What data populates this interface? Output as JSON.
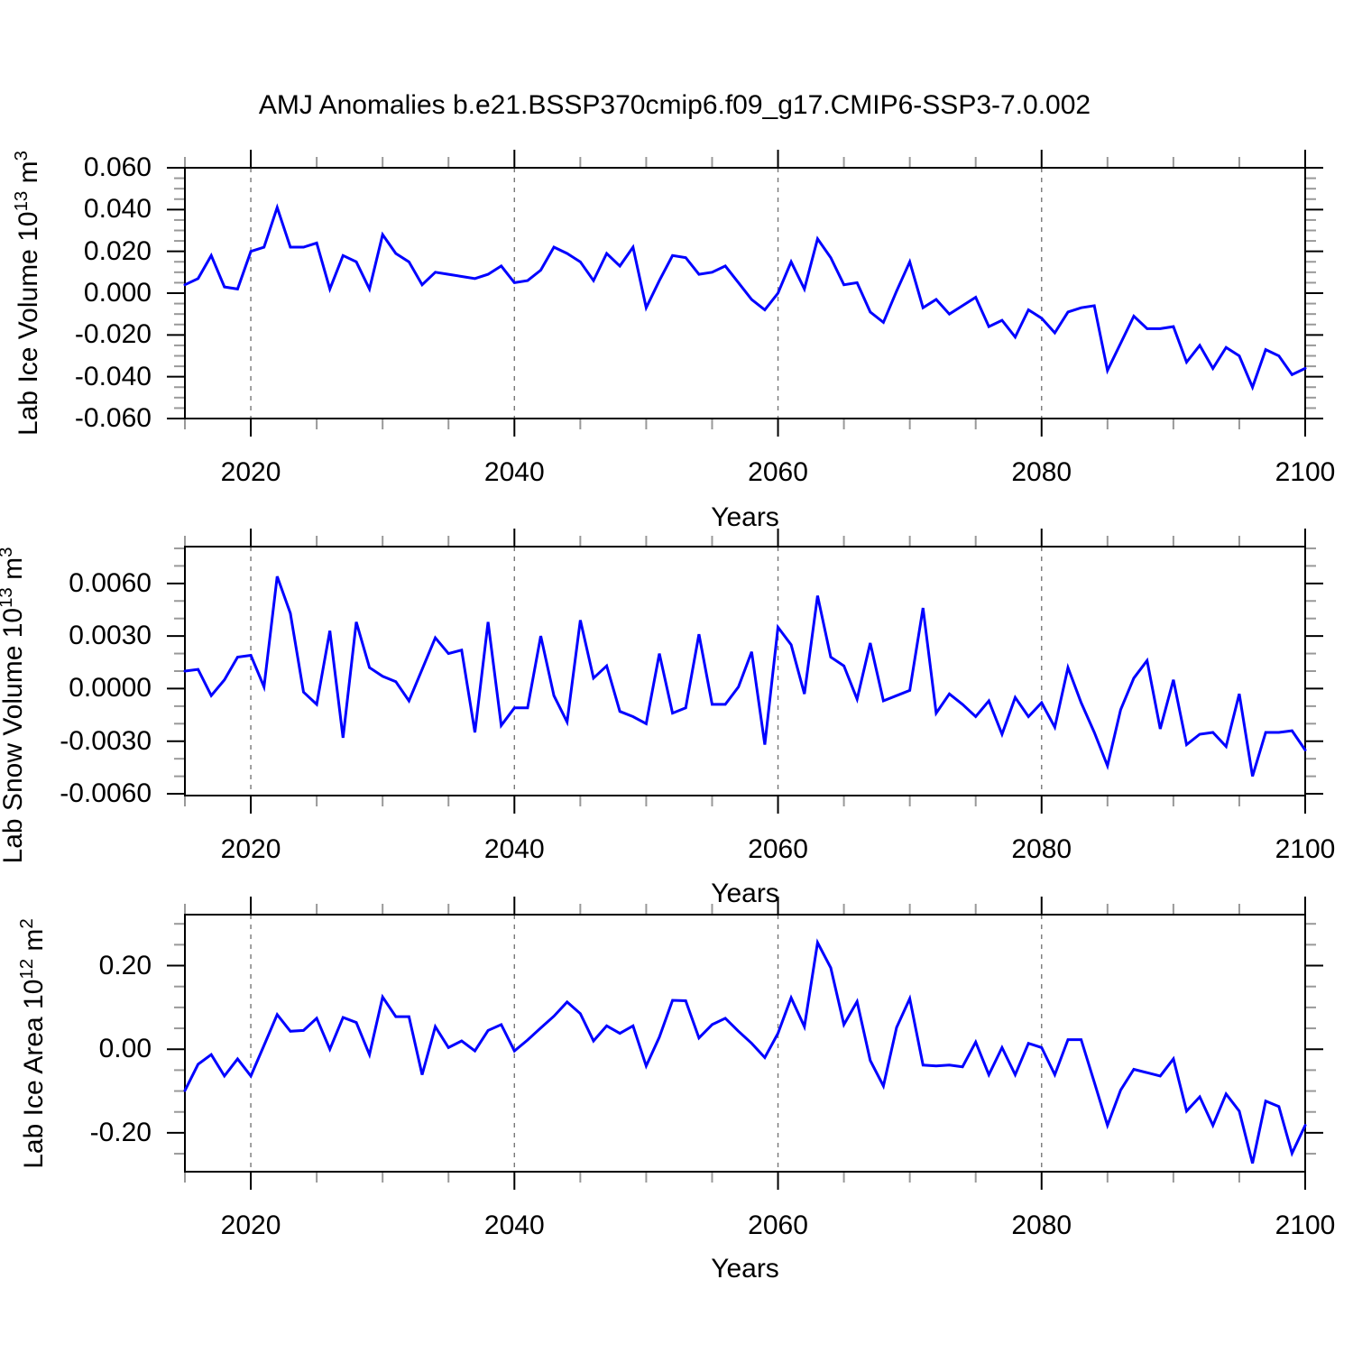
{
  "title": "AMJ Anomalies b.e21.BSSP370cmip6.f09_g17.CMIP6-SSP3-7.0.002",
  "xlabel": "Years",
  "line_color": "#0000ff",
  "axis_color": "#000000",
  "minor_tick_color": "#999999",
  "grid_color": "#777777",
  "x_tick_labels": [
    "2020",
    "2040",
    "2060",
    "2080",
    "2100"
  ],
  "chart_data": [
    {
      "type": "line",
      "name": "lab-ice-volume",
      "ylabel": "Lab Ice Volume 10^13 m^3",
      "ylabel_main": "Lab Ice Volume 10",
      "ylabel_sup": "13",
      "ylabel_unit": " m",
      "ylabel_unit_sup": "3",
      "xlim": [
        2015,
        2100
      ],
      "ylim": [
        -0.06,
        0.06
      ],
      "x_major_ticks": [
        2020,
        2040,
        2060,
        2080,
        2100
      ],
      "x_minor_step": 5,
      "grid_years": [
        2020,
        2040,
        2060,
        2080
      ],
      "y_major_ticks": [
        0.06,
        0.04,
        0.02,
        0.0,
        -0.02,
        -0.04,
        -0.06
      ],
      "y_tick_labels": [
        "0.060",
        "0.040",
        "0.020",
        "0.000",
        "-0.020",
        "-0.040",
        "-0.060"
      ],
      "y_minor_step": 0.005,
      "x_start": 2015,
      "x_step": 1,
      "values": [
        0.004,
        0.007,
        0.018,
        0.003,
        0.002,
        0.02,
        0.022,
        0.041,
        0.022,
        0.022,
        0.024,
        0.002,
        0.018,
        0.015,
        0.002,
        0.028,
        0.019,
        0.015,
        0.004,
        0.01,
        0.009,
        0.008,
        0.007,
        0.009,
        0.013,
        0.005,
        0.006,
        0.011,
        0.022,
        0.019,
        0.015,
        0.006,
        0.019,
        0.013,
        0.022,
        -0.007,
        0.006,
        0.018,
        0.017,
        0.009,
        0.01,
        0.013,
        0.005,
        -0.003,
        -0.008,
        0.0,
        0.015,
        0.002,
        0.026,
        0.017,
        0.004,
        0.005,
        -0.009,
        -0.014,
        0.001,
        0.015,
        -0.007,
        -0.003,
        -0.01,
        -0.006,
        -0.002,
        -0.016,
        -0.013,
        -0.021,
        -0.008,
        -0.012,
        -0.019,
        -0.009,
        -0.007,
        -0.006,
        -0.037,
        -0.024,
        -0.011,
        -0.017,
        -0.017,
        -0.016,
        -0.033,
        -0.025,
        -0.036,
        -0.026,
        -0.03,
        -0.045,
        -0.027,
        -0.03,
        -0.039,
        -0.036
      ]
    },
    {
      "type": "line",
      "name": "lab-snow-volume",
      "ylabel": "Lab Snow Volume 10^13 m^3",
      "ylabel_main": "Lab Snow Volume 10",
      "ylabel_sup": "13",
      "ylabel_unit": " m",
      "ylabel_unit_sup": "3",
      "xlim": [
        2015,
        2100
      ],
      "ylim": [
        -0.0061,
        0.0081
      ],
      "x_major_ticks": [
        2020,
        2040,
        2060,
        2080,
        2100
      ],
      "x_minor_step": 5,
      "grid_years": [
        2020,
        2040,
        2060,
        2080
      ],
      "y_major_ticks": [
        0.006,
        0.003,
        0.0,
        -0.003,
        -0.006
      ],
      "y_tick_labels": [
        "0.0060",
        "0.0030",
        "0.0000",
        "-0.0030",
        "-0.0060"
      ],
      "y_minor_step": 0.001,
      "x_start": 2015,
      "x_step": 1,
      "values": [
        0.001,
        0.0011,
        -0.0004,
        0.0005,
        0.0018,
        0.0019,
        0.0001,
        0.0064,
        0.0043,
        -0.0002,
        -0.0009,
        0.0033,
        -0.0028,
        0.0038,
        0.0012,
        0.0007,
        0.0004,
        -0.0007,
        0.0011,
        0.0029,
        0.002,
        0.0022,
        -0.0025,
        0.0038,
        -0.0021,
        -0.0011,
        -0.0011,
        0.003,
        -0.0004,
        -0.0019,
        0.0039,
        0.0006,
        0.0013,
        -0.0013,
        -0.0016,
        -0.002,
        0.002,
        -0.0014,
        -0.0011,
        0.0031,
        -0.0009,
        -0.0009,
        0.0001,
        0.0021,
        -0.0032,
        0.0035,
        0.0025,
        -0.0003,
        0.0053,
        0.0018,
        0.0013,
        -0.0006,
        0.0026,
        -0.0007,
        -0.0004,
        -0.0001,
        0.0046,
        -0.0014,
        -0.0003,
        -0.0009,
        -0.0016,
        -0.0007,
        -0.0026,
        -0.0005,
        -0.0016,
        -0.0008,
        -0.0022,
        0.0012,
        -0.0008,
        -0.0025,
        -0.0044,
        -0.0012,
        0.0006,
        0.0016,
        -0.0023,
        0.0005,
        -0.0032,
        -0.0026,
        -0.0025,
        -0.0033,
        -0.0003,
        -0.005,
        -0.0025,
        -0.0025,
        -0.0024,
        -0.0035
      ]
    },
    {
      "type": "line",
      "name": "lab-ice-area",
      "ylabel": "Lab Ice Area 10^12 m^2",
      "ylabel_main": "Lab Ice Area 10",
      "ylabel_sup": "12",
      "ylabel_unit": " m",
      "ylabel_unit_sup": "2",
      "xlim": [
        2015,
        2100
      ],
      "ylim": [
        -0.293,
        0.322
      ],
      "x_major_ticks": [
        2020,
        2040,
        2060,
        2080,
        2100
      ],
      "x_minor_step": 5,
      "grid_years": [
        2020,
        2040,
        2060,
        2080
      ],
      "y_major_ticks": [
        0.2,
        0.0,
        -0.2
      ],
      "y_tick_labels": [
        "0.20",
        "0.00",
        "-0.20"
      ],
      "y_minor_step": 0.05,
      "x_start": 2015,
      "x_step": 1,
      "values": [
        -0.099,
        -0.036,
        -0.013,
        -0.064,
        -0.023,
        -0.064,
        0.009,
        0.083,
        0.043,
        0.045,
        0.074,
        0.0,
        0.076,
        0.064,
        -0.013,
        0.125,
        0.078,
        0.078,
        -0.061,
        0.054,
        0.004,
        0.02,
        -0.004,
        0.045,
        0.059,
        -0.004,
        0.022,
        0.051,
        0.079,
        0.113,
        0.085,
        0.02,
        0.056,
        0.038,
        0.056,
        -0.04,
        0.029,
        0.117,
        0.116,
        0.027,
        0.059,
        0.074,
        0.043,
        0.014,
        -0.02,
        0.038,
        0.123,
        0.054,
        0.255,
        0.195,
        0.059,
        0.114,
        -0.027,
        -0.088,
        0.052,
        0.121,
        -0.038,
        -0.04,
        -0.038,
        -0.042,
        0.017,
        -0.061,
        0.004,
        -0.061,
        0.014,
        0.004,
        -0.061,
        0.023,
        0.023,
        -0.079,
        -0.182,
        -0.098,
        -0.048,
        -0.056,
        -0.064,
        -0.023,
        -0.148,
        -0.114,
        -0.182,
        -0.107,
        -0.148,
        -0.273,
        -0.124,
        -0.137,
        -0.249,
        -0.182
      ]
    }
  ]
}
